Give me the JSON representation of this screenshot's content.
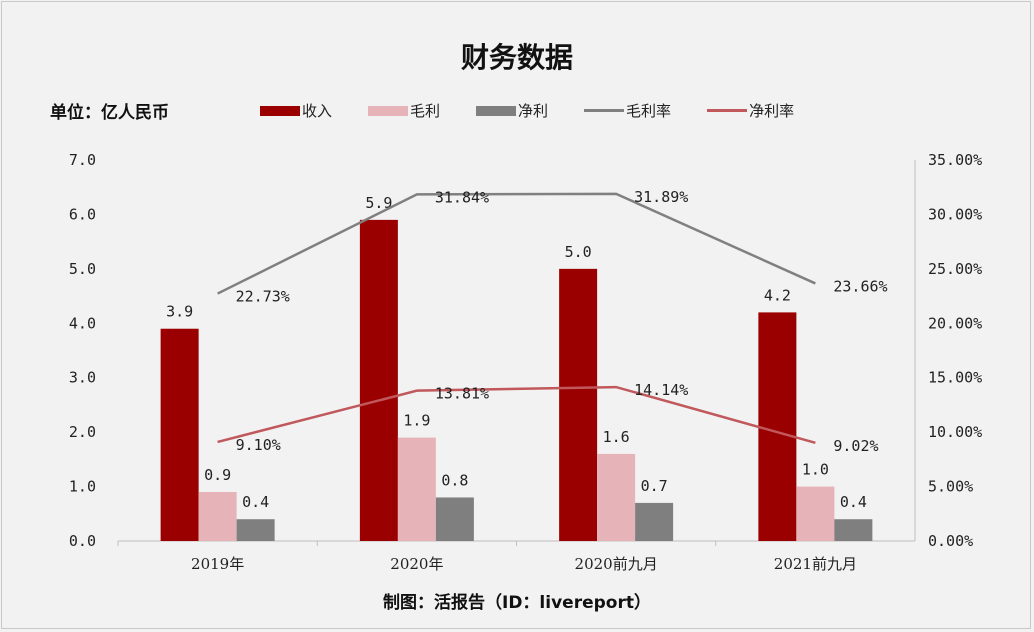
{
  "chart_data": {
    "type": "bar",
    "title": "财务数据",
    "unit_label": "单位：亿人民币",
    "footer": "制图：活报告（ID：livereport）",
    "categories": [
      "2019年",
      "2020年",
      "2020前九月",
      "2021前九月"
    ],
    "left_axis": {
      "ylim": [
        0,
        7
      ],
      "ticks": [
        "0.0",
        "1.0",
        "2.0",
        "3.0",
        "4.0",
        "5.0",
        "6.0",
        "7.0"
      ]
    },
    "right_axis": {
      "ylim": [
        0,
        35
      ],
      "ticks": [
        "0.00%",
        "5.00%",
        "10.00%",
        "15.00%",
        "20.00%",
        "25.00%",
        "30.00%",
        "35.00%"
      ]
    },
    "grid": false,
    "legend_position": "top",
    "series": [
      {
        "name": "收入",
        "type": "bar",
        "axis": "left",
        "color": "#9b0000",
        "values": [
          3.9,
          5.9,
          5.0,
          4.2
        ],
        "labels": [
          "3.9",
          "5.9",
          "5.0",
          "4.2"
        ]
      },
      {
        "name": "毛利",
        "type": "bar",
        "axis": "left",
        "color": "#e6b4b8",
        "values": [
          0.9,
          1.9,
          1.6,
          1.0
        ],
        "labels": [
          "0.9",
          "1.9",
          "1.6",
          "1.0"
        ]
      },
      {
        "name": "净利",
        "type": "bar",
        "axis": "left",
        "color": "#7f7f7f",
        "values": [
          0.4,
          0.8,
          0.7,
          0.4
        ],
        "labels": [
          "0.4",
          "0.8",
          "0.7",
          "0.4"
        ]
      },
      {
        "name": "毛利率",
        "type": "line",
        "axis": "right",
        "color": "#808080",
        "values": [
          22.73,
          31.84,
          31.89,
          23.66
        ],
        "labels": [
          "22.73%",
          "31.84%",
          "31.89%",
          "23.66%"
        ]
      },
      {
        "name": "净利率",
        "type": "line",
        "axis": "right",
        "color": "#c0585c",
        "values": [
          9.1,
          13.81,
          14.14,
          9.02
        ],
        "labels": [
          "9.10%",
          "13.81%",
          "14.14%",
          "9.02%"
        ]
      }
    ]
  }
}
